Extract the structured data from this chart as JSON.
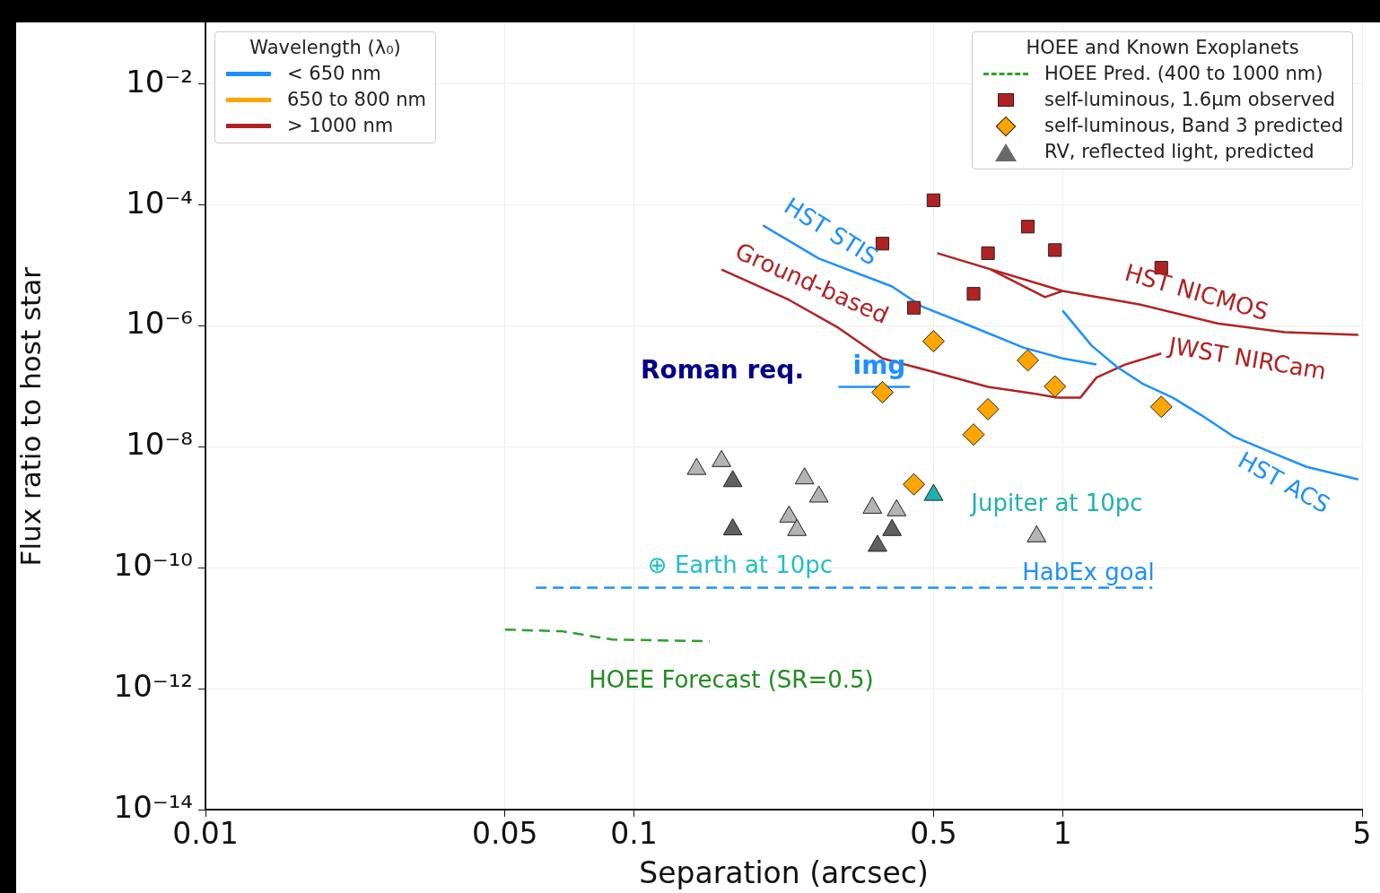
{
  "chart_data": {
    "type": "scatter",
    "xlabel": "Separation (arcsec)",
    "ylabel": "Flux ratio to host star",
    "log": "xy",
    "grid": true,
    "legend": "top right",
    "legend_title": "HOEE and Known Exoplanets",
    "xlim": [
      0.01,
      5
    ],
    "xticks": [
      0.01,
      0.05,
      0.1,
      0.5,
      1,
      5
    ],
    "ylim": [
      1e-14,
      0.1
    ],
    "yticks": [
      {
        "value": 0.01,
        "label": "10⁻²"
      },
      {
        "value": 0.0001,
        "label": "10⁻⁴"
      },
      {
        "value": 1e-06,
        "label": "10⁻⁶"
      },
      {
        "value": 1e-08,
        "label": "10⁻⁸"
      },
      {
        "value": 1e-10,
        "label": "10⁻¹⁰"
      },
      {
        "value": 1e-12,
        "label": "10⁻¹²"
      },
      {
        "value": 1e-14,
        "label": "10⁻¹⁴"
      }
    ],
    "series": [
      {
        "type": "line",
        "name": "HST STIS",
        "color": "#1e90ff",
        "x": [
          0.2,
          0.27,
          0.4,
          0.47,
          0.59,
          0.81,
          1.0,
          1.2
        ],
        "values": [
          4.6e-05,
          1.3e-05,
          4.5e-06,
          2.1e-06,
          1.1e-06,
          4.4e-07,
          2.9e-07,
          2.3e-07
        ]
      },
      {
        "type": "line",
        "name": "HST ACS",
        "color": "#1e90ff",
        "x": [
          1.0,
          1.17,
          1.34,
          1.54,
          1.81,
          2.1,
          2.5,
          3.1,
          3.7,
          4.9
        ],
        "values": [
          1.8e-06,
          4.7e-07,
          2.1e-07,
          1.1e-07,
          6.5e-08,
          3.4e-08,
          1.5e-08,
          7.9e-09,
          4.7e-09,
          2.9e-09
        ]
      },
      {
        "type": "line",
        "name": "Ground-based",
        "color": "#b22222",
        "x": [
          0.16,
          0.23,
          0.3,
          0.38,
          0.49,
          0.67,
          0.85,
          0.97
        ],
        "values": [
          8.6e-06,
          2.7e-06,
          9.3e-07,
          2.9e-07,
          1.8e-07,
          9.8e-08,
          7.7e-08,
          6.5e-08
        ]
      },
      {
        "type": "line",
        "name": "JWST NIRCam",
        "color": "#b22222",
        "x": [
          0.97,
          1.1,
          1.2,
          1.4,
          1.7
        ],
        "values": [
          6.5e-08,
          6.5e-08,
          1.4e-07,
          2.3e-07,
          3.5e-07
        ]
      },
      {
        "type": "line",
        "name": "HST NICMOS",
        "color": "#b22222",
        "x": [
          0.51,
          1.0,
          1.5,
          2.3,
          3.3,
          4.9
        ],
        "values": [
          1.6e-05,
          3.8e-06,
          2.3e-06,
          1.1e-06,
          7.9e-07,
          7.1e-07
        ]
      },
      {
        "type": "line",
        "color": "#b22222",
        "x": [
          0.68,
          0.91,
          1.0
        ],
        "values": [
          8.6e-06,
          3e-06,
          3.8e-06
        ]
      },
      {
        "type": "line",
        "name": "img",
        "color": "#1e90ff",
        "x": [
          0.3,
          0.44
        ],
        "values": [
          9.8e-08,
          9.8e-08
        ]
      },
      {
        "type": "line",
        "name": "HabEx goal",
        "color": "#1e90ff",
        "line_style": "dashed",
        "x": [
          0.059,
          1.62
        ],
        "values": [
          4.7e-11,
          4.7e-11
        ]
      },
      {
        "type": "line",
        "name": "HOEE Pred. (400 to 1000 nm)",
        "color": "#2ca02c",
        "line_style": "dashed",
        "x": [
          0.05,
          0.068,
          0.089,
          0.15
        ],
        "values": [
          9.5e-12,
          8.9e-12,
          6.5e-12,
          6.1e-12
        ]
      },
      {
        "type": "scatter",
        "name": "self-luminous, 1.6μm observed",
        "color": "#b22222",
        "marker": "square",
        "x": [
          0.38,
          0.5,
          0.45,
          0.62,
          0.67,
          0.83,
          0.96,
          1.7
        ],
        "values": [
          2.3e-05,
          0.00012,
          2e-06,
          3.4e-06,
          1.6e-05,
          4.4e-05,
          1.8e-05,
          9.2e-06
        ]
      },
      {
        "type": "scatter",
        "name": "self-luminous, Band 3 predicted",
        "color": "#ffa500",
        "marker": "diamond",
        "x": [
          0.38,
          0.5,
          0.45,
          0.62,
          0.67,
          0.83,
          0.96,
          1.7
        ],
        "values": [
          8e-08,
          5.6e-07,
          2.4e-09,
          1.6e-08,
          4.2e-08,
          2.7e-07,
          1e-07,
          4.6e-08
        ]
      },
      {
        "type": "scatter",
        "name": "RV, reflected light, predicted",
        "color": "#696969",
        "marker": "triangle",
        "x": [
          0.14,
          0.16,
          0.17,
          0.17,
          0.25,
          0.27,
          0.23,
          0.24,
          0.36,
          0.41,
          0.4,
          0.37,
          0.87
        ],
        "values": [
          4.3e-09,
          5.8e-09,
          2.7e-09,
          4.3e-10,
          3e-09,
          1.5e-09,
          7e-10,
          4.2e-10,
          9.8e-10,
          8.9e-10,
          4.2e-10,
          2.3e-10,
          3.3e-10
        ],
        "colors": [
          "#b4b4b4",
          "#b4b4b4",
          "#606060",
          "#606060",
          "#b4b4b4",
          "#b4b4b4",
          "#b4b4b4",
          "#b4b4b4",
          "#b4b4b4",
          "#b4b4b4",
          "#606060",
          "#606060",
          "#b4b4b4"
        ]
      },
      {
        "type": "scatter",
        "name": "Jupiter at 10pc",
        "color": "#20b2aa",
        "marker": "triangle",
        "x": [
          0.5
        ],
        "values": [
          1.6e-09
        ]
      }
    ],
    "annotations": [
      "Wavelength (λ₀)",
      "< 650 nm",
      "650 to 800 nm",
      "> 1000 nm",
      "Roman req.",
      "⊕ Earth at 10pc",
      "HOEE Forecast (SR=0.5)"
    ]
  }
}
